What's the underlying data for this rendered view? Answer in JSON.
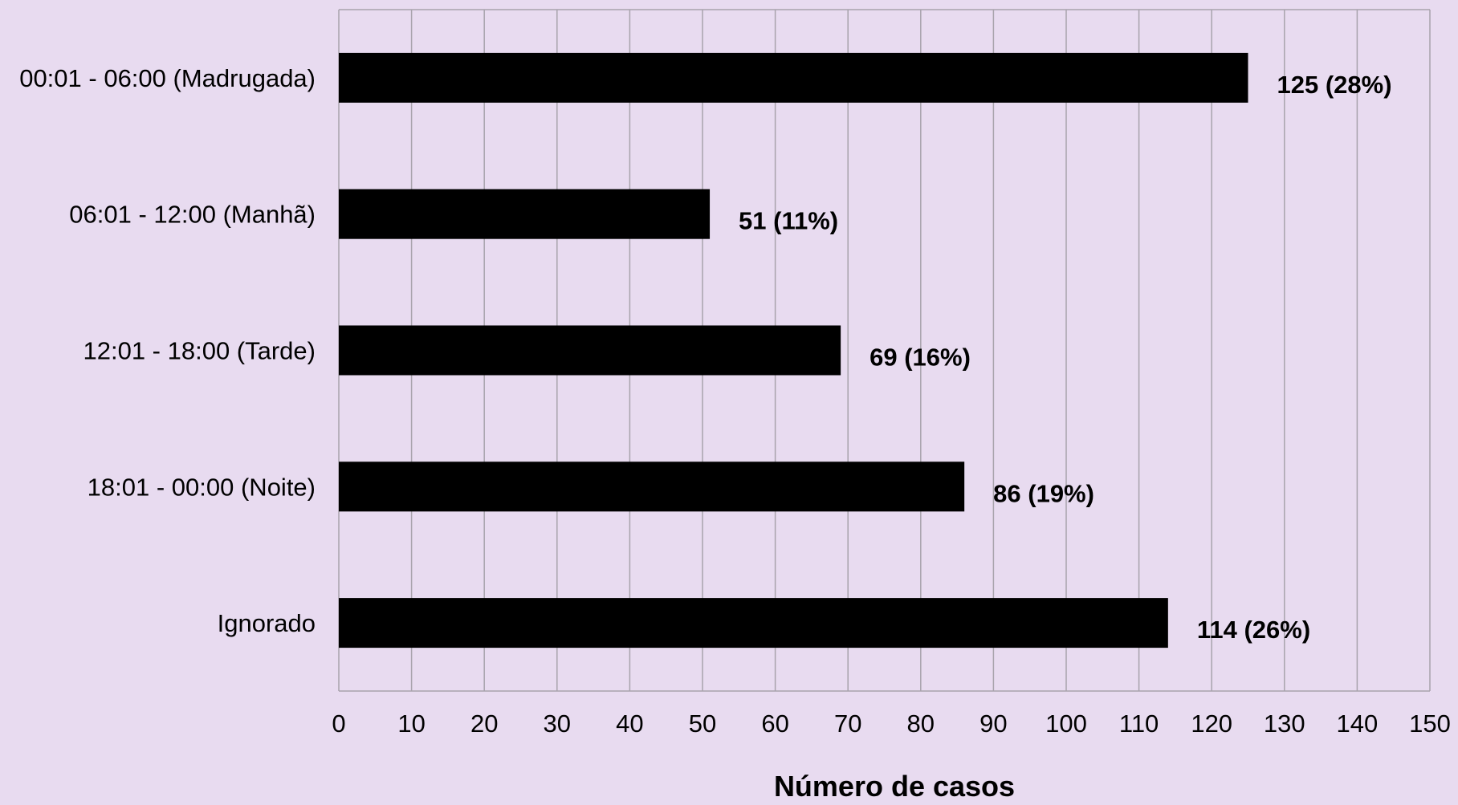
{
  "chart_data": {
    "type": "bar",
    "orientation": "horizontal",
    "categories": [
      "00:01 - 06:00 (Madrugada)",
      "06:01 - 12:00 (Manhã)",
      "12:01 - 18:00 (Tarde)",
      "18:01 - 00:00 (Noite)",
      "Ignorado"
    ],
    "values": [
      125,
      51,
      69,
      86,
      114
    ],
    "data_labels": [
      "125 (28%)",
      "51 (11%)",
      "69 (16%)",
      "86 (19%)",
      "114 (26%)"
    ],
    "xlabel": "Número de casos",
    "ylabel": "",
    "xlim": [
      0,
      150
    ],
    "xticks": [
      "0",
      "10",
      "20",
      "30",
      "40",
      "50",
      "60",
      "70",
      "80",
      "90",
      "100",
      "110",
      "120",
      "130",
      "140",
      "150"
    ],
    "grid": "vertical",
    "bar_color": "#000000",
    "background_color": "#e8dbf0",
    "grid_color": "#a8a3ac"
  }
}
